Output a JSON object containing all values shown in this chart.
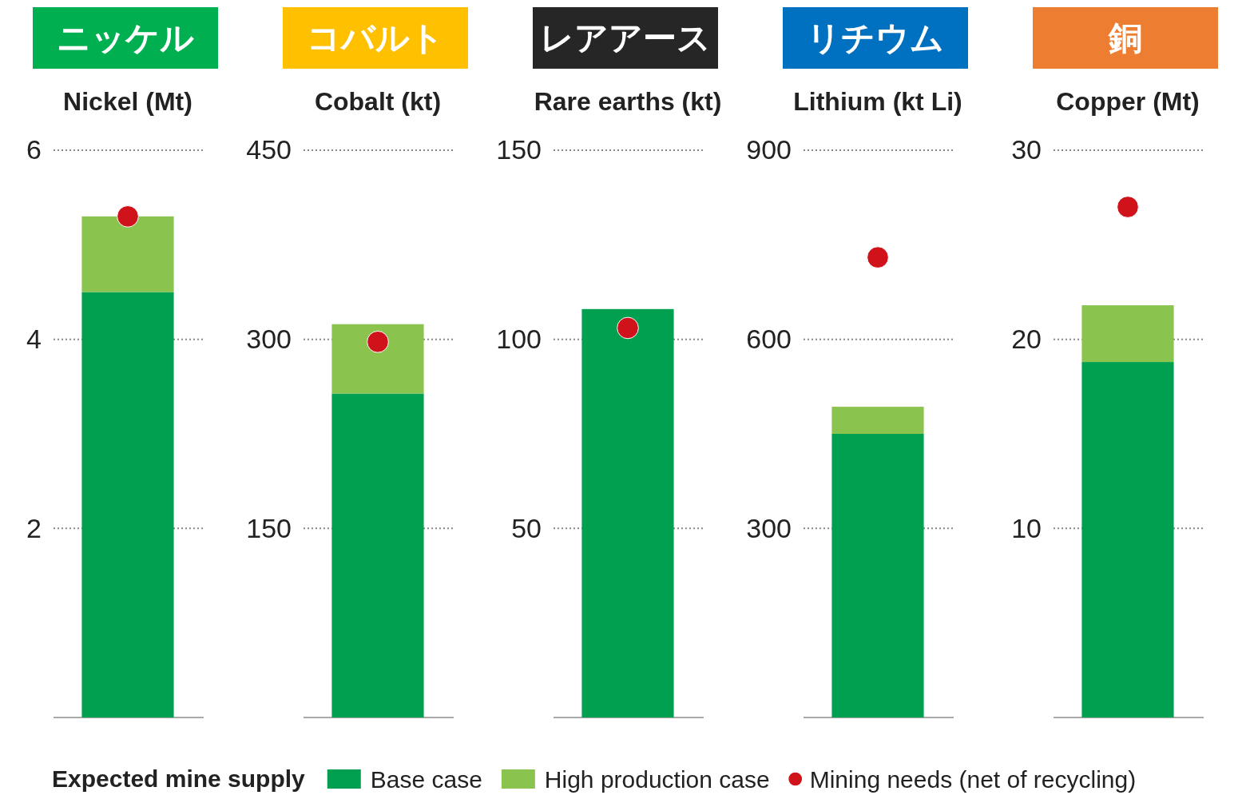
{
  "chart_data": [
    {
      "type": "bar",
      "title": "ニッケル",
      "subtitle": "Nickel (Mt)",
      "categories": [
        null
      ],
      "stacked": true,
      "ylim": [
        0,
        6
      ],
      "yticks": [
        2,
        4,
        6
      ],
      "grid": "y",
      "legend": "bottom",
      "legend_title": "Expected mine supply",
      "series": [
        {
          "name": "Base case",
          "color": "#00a050",
          "values": [
            4.5
          ]
        },
        {
          "name": "High production case",
          "color": "#8bc34f",
          "values": [
            0.8
          ]
        },
        {
          "name": "Mining needs (net of recycling)",
          "type": "scatter",
          "color": "#d0121b",
          "marker": "circle",
          "values": [
            5.3
          ]
        }
      ]
    },
    {
      "type": "bar",
      "title": "コバルト",
      "subtitle": "Cobalt (kt)",
      "categories": [
        null
      ],
      "stacked": true,
      "ylim": [
        0,
        450
      ],
      "yticks": [
        150,
        300,
        450
      ],
      "grid": "y",
      "series": [
        {
          "color": "#00a050",
          "values": [
            257
          ]
        },
        {
          "color": "#8bc34f",
          "values": [
            55
          ]
        },
        {
          "type": "scatter",
          "color": "#d0121b",
          "marker": "circle",
          "values": [
            298
          ]
        }
      ]
    },
    {
      "type": "bar",
      "title": "レアアース",
      "subtitle": "Rare earths (kt)",
      "categories": [
        null
      ],
      "stacked": true,
      "ylim": [
        0,
        150
      ],
      "yticks": [
        50,
        100,
        150
      ],
      "grid": "y",
      "series": [
        {
          "color": "#00a050",
          "values": [
            108
          ]
        },
        {
          "type": "scatter",
          "color": "#d0121b",
          "marker": "circle",
          "values": [
            103
          ]
        }
      ]
    },
    {
      "type": "bar",
      "title": "リチウム",
      "subtitle": "Lithium (kt Li)",
      "categories": [
        null
      ],
      "stacked": true,
      "ylim": [
        0,
        900
      ],
      "yticks": [
        300,
        600,
        900
      ],
      "grid": "y",
      "series": [
        {
          "color": "#00a050",
          "values": [
            450
          ]
        },
        {
          "color": "#8bc34f",
          "values": [
            43
          ]
        },
        {
          "type": "scatter",
          "color": "#d0121b",
          "marker": "circle",
          "values": [
            730
          ]
        }
      ]
    },
    {
      "type": "bar",
      "title": "銅",
      "subtitle": "Copper (Mt)",
      "categories": [
        null
      ],
      "stacked": true,
      "ylim": [
        0,
        30
      ],
      "yticks": [
        10,
        20,
        30
      ],
      "grid": "y",
      "series": [
        {
          "color": "#00a050",
          "values": [
            18.8
          ]
        },
        {
          "color": "#8bc34f",
          "values": [
            3
          ]
        },
        {
          "type": "scatter",
          "color": "#d0121b",
          "marker": "circle",
          "values": [
            27
          ]
        }
      ]
    }
  ]
}
